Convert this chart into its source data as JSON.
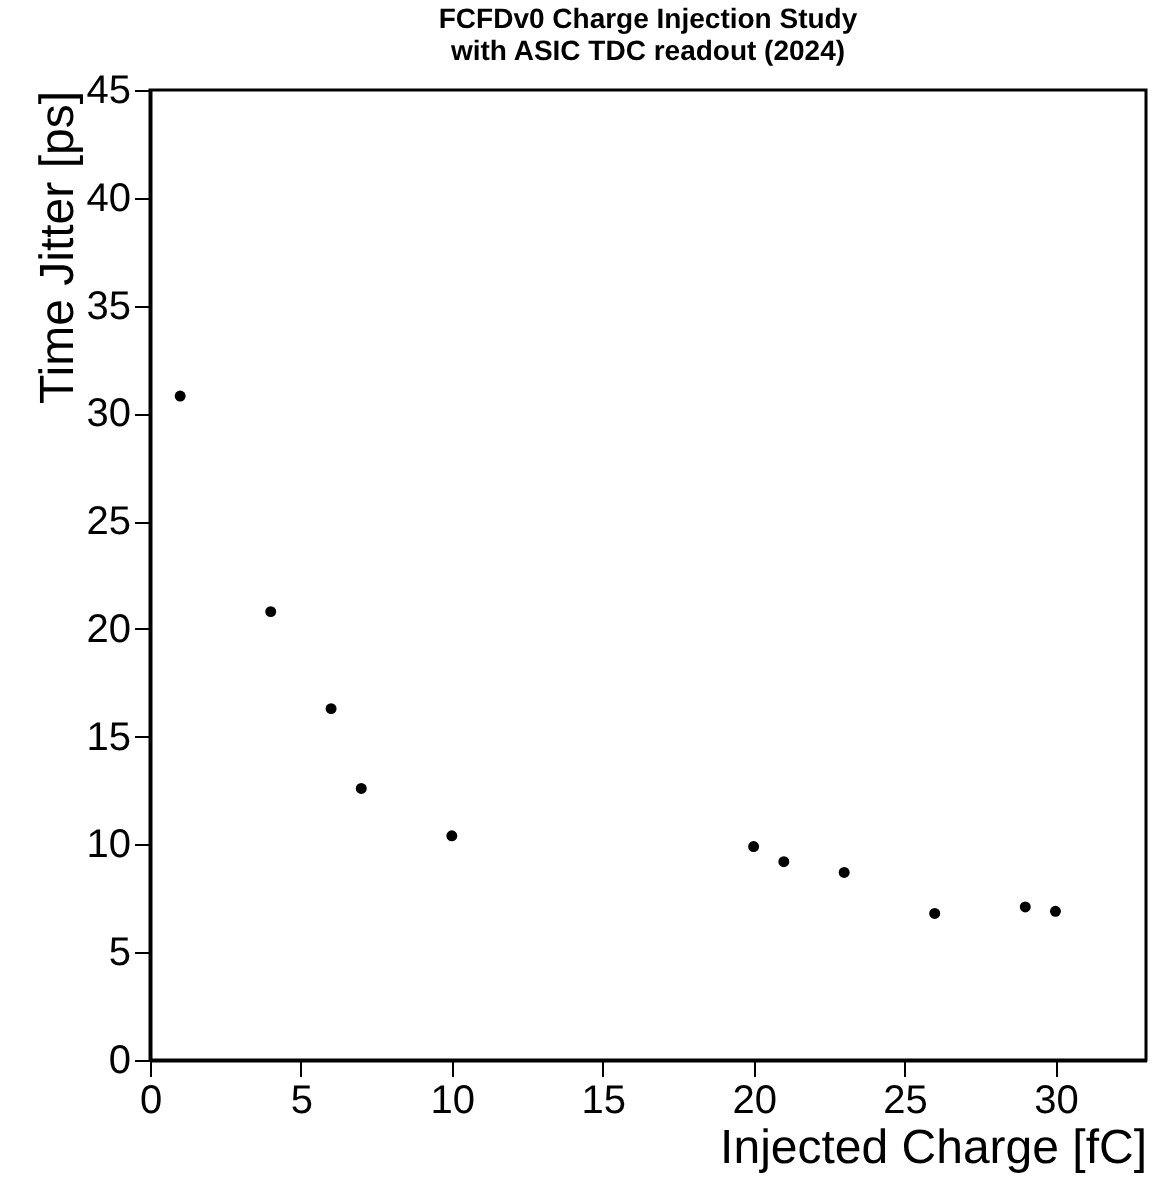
{
  "chart_data": {
    "type": "scatter",
    "title": "FCFDv0 Charge Injection Study\nwith ASIC TDC readout (2024)",
    "xlabel": "Injected Charge [fC]",
    "ylabel": "Time Jitter [ps]",
    "x": [
      1,
      4,
      6,
      7,
      10,
      20,
      21,
      23,
      26,
      29,
      30
    ],
    "series": [
      {
        "color": "#000000",
        "values": [
          30.8,
          20.8,
          16.3,
          12.6,
          10.4,
          9.9,
          9.2,
          8.7,
          6.8,
          7.1,
          6.9
        ]
      }
    ],
    "xlim": [
      0,
      33
    ],
    "xticks": [
      0,
      5,
      10,
      15,
      20,
      25,
      30
    ],
    "ylim": [
      0,
      45
    ],
    "yticks": [
      0,
      5,
      10,
      15,
      20,
      25,
      30,
      35,
      40,
      45
    ],
    "marker": "circle",
    "grid": false,
    "legend": false
  }
}
